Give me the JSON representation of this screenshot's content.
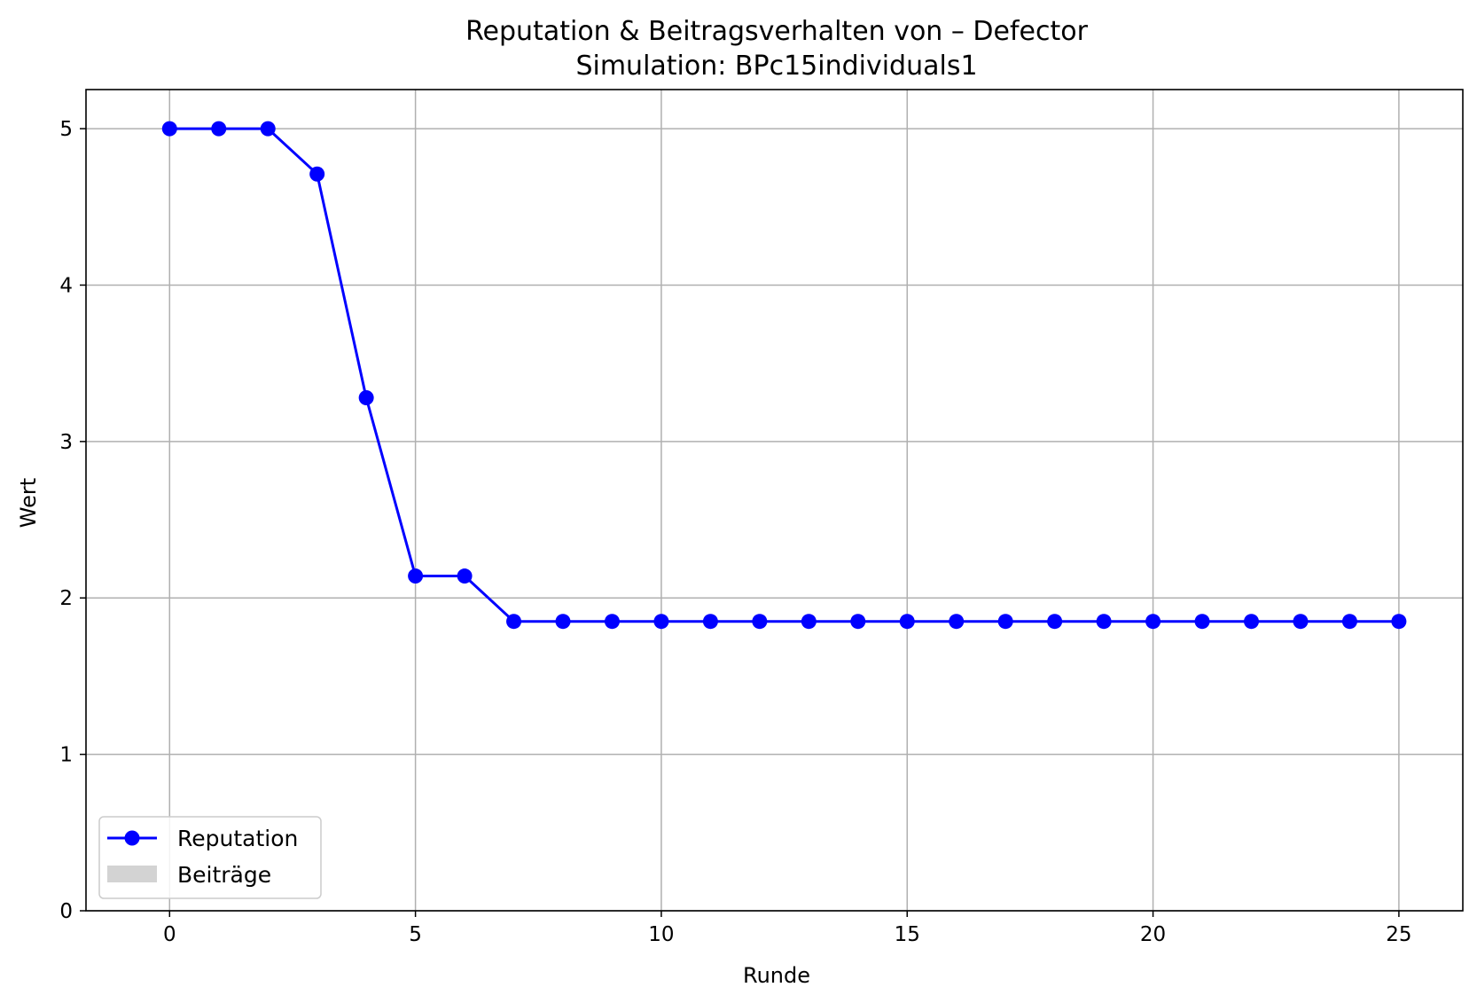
{
  "chart_data": {
    "type": "line",
    "title": "Reputation & Beitragsverhalten von – Defector",
    "subtitle": "Simulation: BPc15individuals1",
    "xlabel": "Runde",
    "ylabel": "Wert",
    "xlim": [
      -1.7,
      26.3
    ],
    "ylim": [
      0,
      5.25
    ],
    "xticks": [
      0,
      5,
      10,
      15,
      20,
      25
    ],
    "yticks": [
      0,
      1,
      2,
      3,
      4,
      5
    ],
    "grid": true,
    "legend_position": "lower-left",
    "series": [
      {
        "name": "Reputation",
        "color": "#0000ff",
        "marker": "circle",
        "x": [
          0,
          1,
          2,
          3,
          4,
          5,
          6,
          7,
          8,
          9,
          10,
          11,
          12,
          13,
          14,
          15,
          16,
          17,
          18,
          19,
          20,
          21,
          22,
          23,
          24,
          25
        ],
        "values": [
          5.0,
          5.0,
          5.0,
          4.71,
          3.28,
          2.14,
          2.14,
          1.85,
          1.85,
          1.85,
          1.85,
          1.85,
          1.85,
          1.85,
          1.85,
          1.85,
          1.85,
          1.85,
          1.85,
          1.85,
          1.85,
          1.85,
          1.85,
          1.85,
          1.85,
          1.85
        ]
      },
      {
        "name": "Beiträge",
        "color": "#d3d3d3",
        "type": "bar",
        "x": [],
        "values": []
      }
    ]
  }
}
